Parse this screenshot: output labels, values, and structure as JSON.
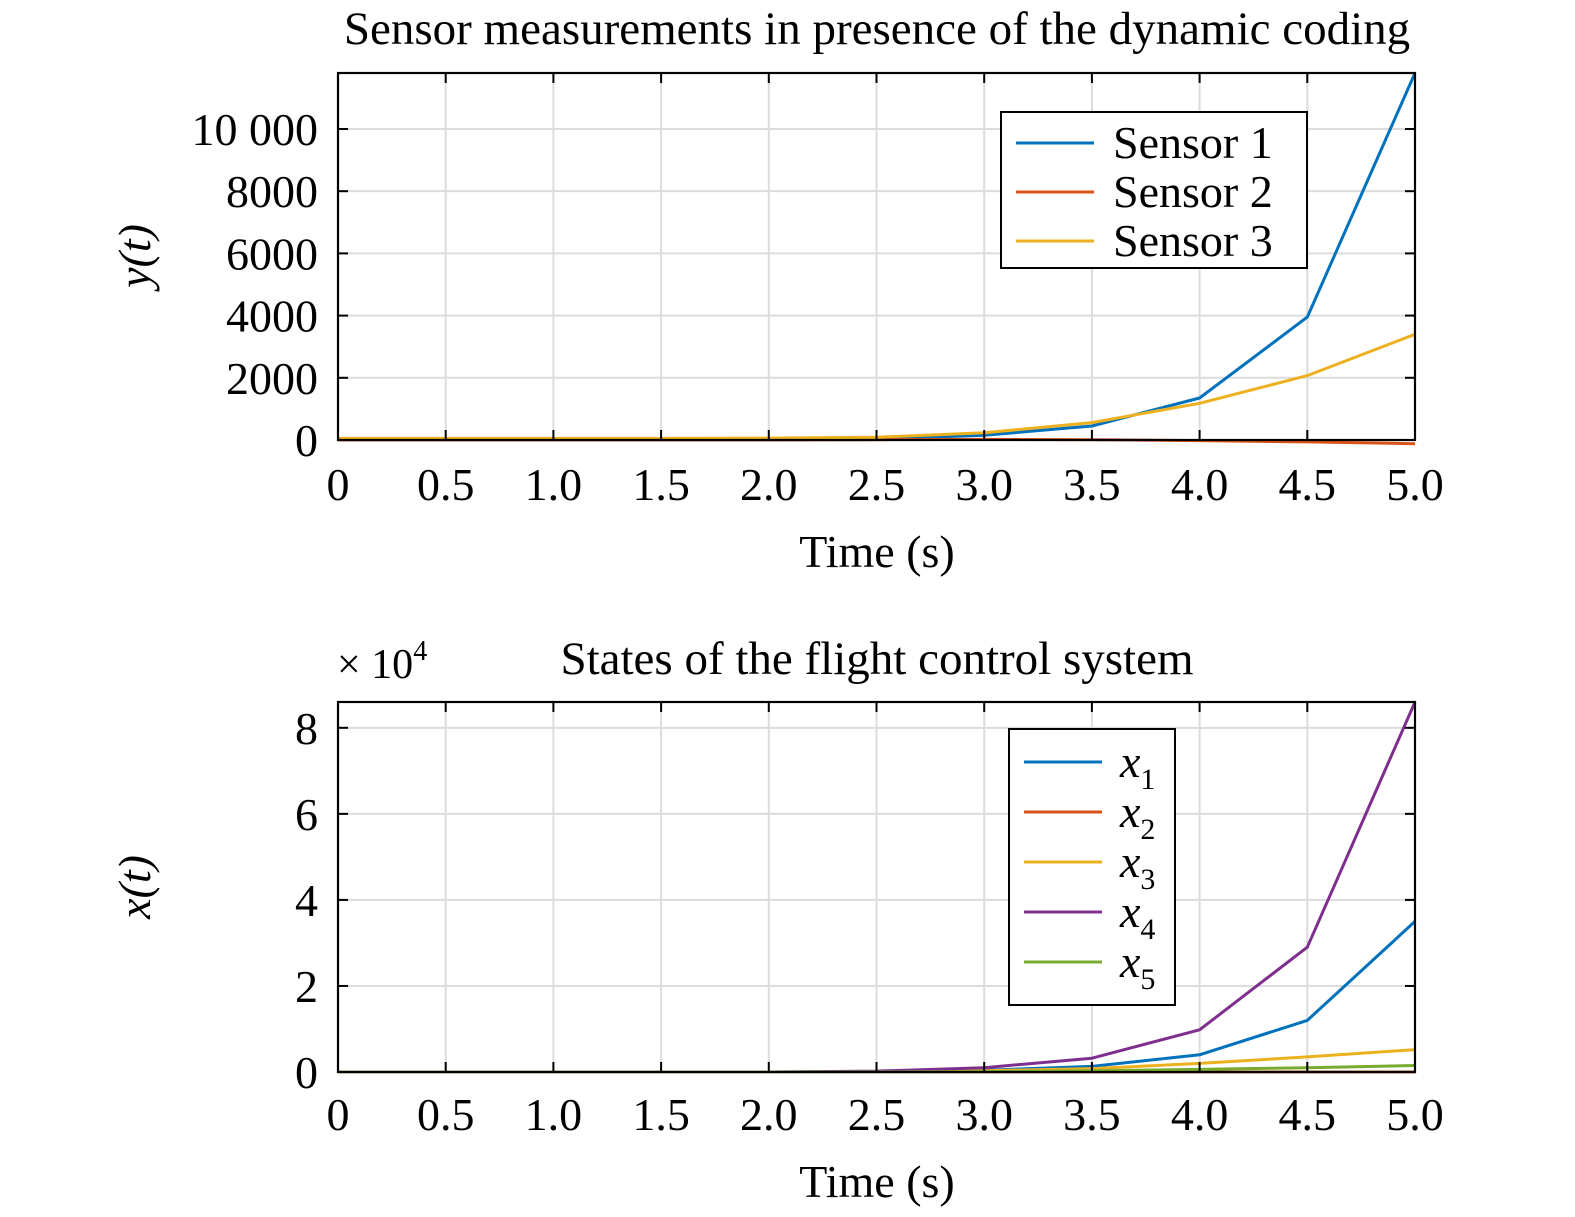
{
  "chart_data": [
    {
      "type": "line",
      "title": "Sensor measurements in presence of the dynamic coding",
      "xlabel": "Time (s)",
      "ylabel": "y(t)",
      "xlim": [
        0,
        5
      ],
      "ylim": [
        0,
        11800
      ],
      "grid": true,
      "legend_position": "top-right",
      "x_ticks": [
        0,
        0.5,
        1.0,
        1.5,
        2.0,
        2.5,
        3.0,
        3.5,
        4.0,
        4.5,
        5.0
      ],
      "x_tick_labels": [
        "0",
        "0.5",
        "1.0",
        "1.5",
        "2.0",
        "2.5",
        "3.0",
        "3.5",
        "4.0",
        "4.5",
        "5.0"
      ],
      "y_ticks": [
        0,
        2000,
        4000,
        6000,
        8000,
        10000
      ],
      "y_tick_labels": [
        "0",
        "2000",
        "4000",
        "6000",
        "8000",
        "10 000"
      ],
      "x": [
        0,
        0.5,
        1.0,
        1.5,
        2.0,
        2.5,
        3.0,
        3.5,
        4.0,
        4.5,
        5.0
      ],
      "series": [
        {
          "name": "Sensor 1",
          "color": "#0072BD",
          "values": [
            0,
            0,
            0,
            0,
            5,
            30,
            150,
            450,
            1350,
            3950,
            11800
          ]
        },
        {
          "name": "Sensor 2",
          "color": "#D95319",
          "values": [
            0,
            0,
            0,
            0,
            0,
            10,
            20,
            10,
            -20,
            -60,
            -120
          ]
        },
        {
          "name": "Sensor 3",
          "color": "#EDB120",
          "values": [
            50,
            50,
            50,
            50,
            60,
            90,
            230,
            560,
            1180,
            2070,
            3400
          ]
        }
      ]
    },
    {
      "type": "line",
      "title": "States of the flight control system",
      "xlabel": "Time (s)",
      "ylabel": "x(t)",
      "y_multiplier": "× 10",
      "y_multiplier_exp": "4",
      "xlim": [
        0,
        5
      ],
      "ylim": [
        0,
        8.6
      ],
      "grid": true,
      "legend_position": "top-right",
      "x_ticks": [
        0,
        0.5,
        1.0,
        1.5,
        2.0,
        2.5,
        3.0,
        3.5,
        4.0,
        4.5,
        5.0
      ],
      "x_tick_labels": [
        "0",
        "0.5",
        "1.0",
        "1.5",
        "2.0",
        "2.5",
        "3.0",
        "3.5",
        "4.0",
        "4.5",
        "5.0"
      ],
      "y_ticks": [
        0,
        2,
        4,
        6,
        8
      ],
      "y_tick_labels": [
        "0",
        "2",
        "4",
        "6",
        "8"
      ],
      "x": [
        0,
        0.5,
        1.0,
        1.5,
        2.0,
        2.5,
        3.0,
        3.5,
        4.0,
        4.5,
        5.0
      ],
      "series": [
        {
          "name": "x",
          "sub": "1",
          "color": "#0072BD",
          "values": [
            0,
            0,
            0,
            0,
            0,
            0.01,
            0.04,
            0.13,
            0.4,
            1.2,
            3.5
          ]
        },
        {
          "name": "x",
          "sub": "2",
          "color": "#D95319",
          "values": [
            0,
            0,
            0,
            0,
            0,
            0,
            0,
            0,
            0,
            0,
            0
          ]
        },
        {
          "name": "x",
          "sub": "3",
          "color": "#EDB120",
          "values": [
            0,
            0,
            0,
            0,
            0,
            0.01,
            0.03,
            0.08,
            0.2,
            0.35,
            0.52
          ]
        },
        {
          "name": "x",
          "sub": "4",
          "color": "#7E2F8E",
          "values": [
            0,
            0,
            0,
            0,
            0,
            0.02,
            0.1,
            0.32,
            0.98,
            2.9,
            8.6
          ]
        },
        {
          "name": "x",
          "sub": "5",
          "color": "#77AC30",
          "values": [
            0,
            0,
            0,
            0,
            0,
            0,
            0.01,
            0.03,
            0.06,
            0.1,
            0.15
          ]
        }
      ]
    }
  ]
}
